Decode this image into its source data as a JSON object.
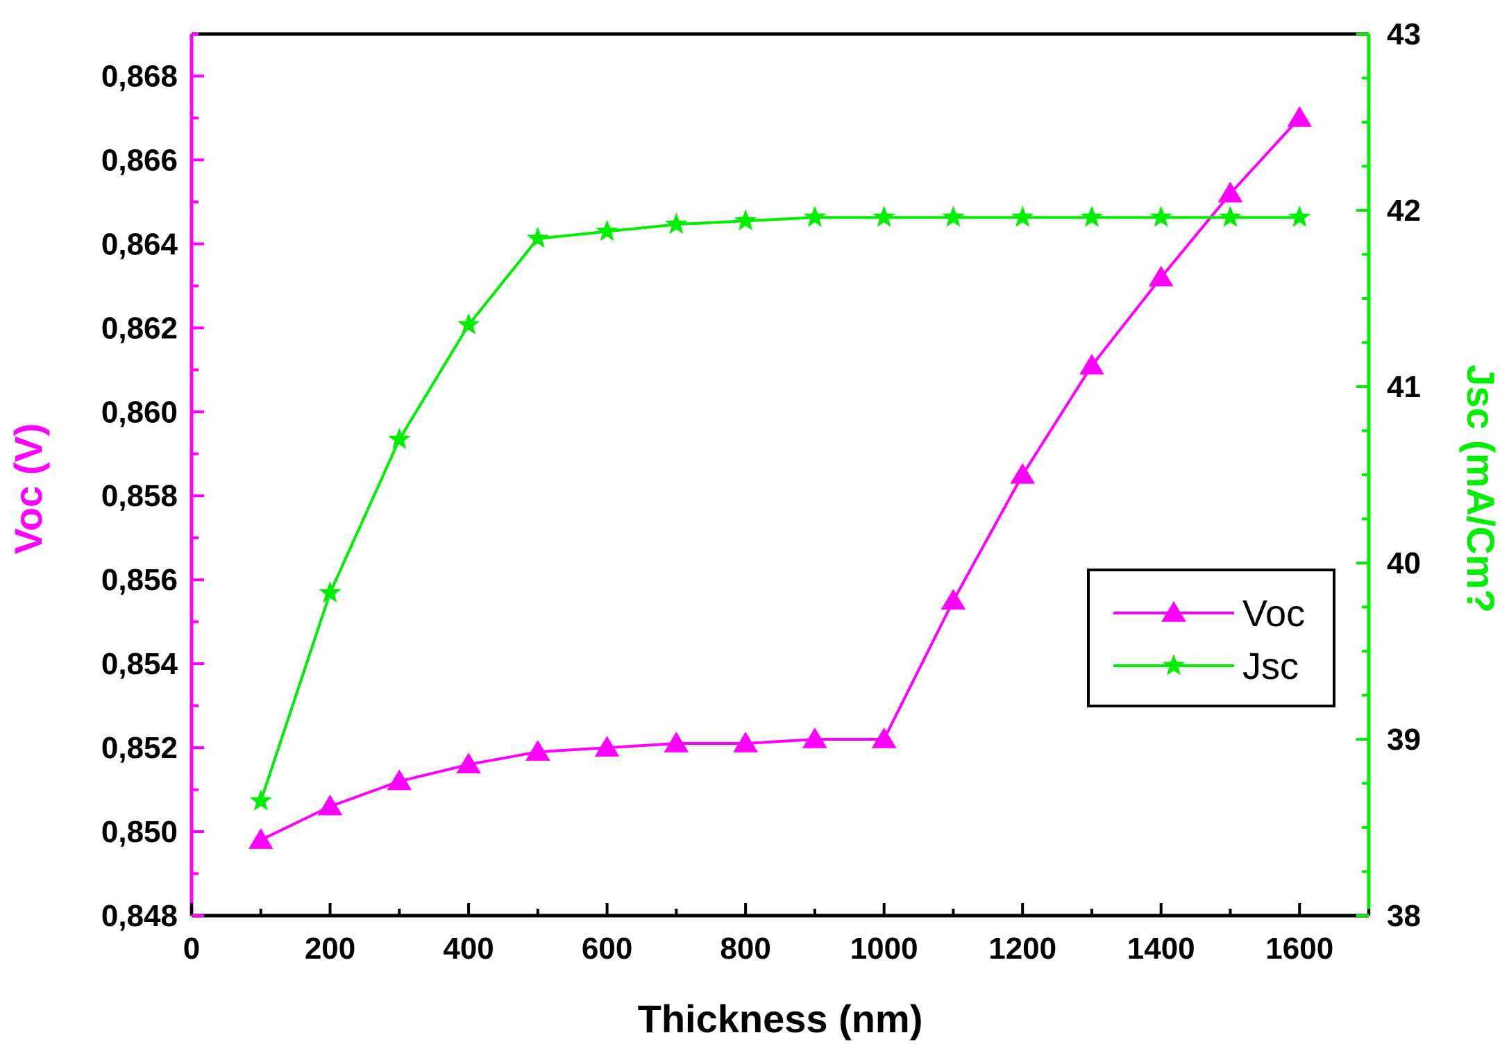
{
  "chart_data": {
    "type": "line",
    "xlabel": "Thickness (nm)",
    "ylabel_left": "Voc (V)",
    "ylabel_right": "Jsc (mA/Cm?",
    "xlim": [
      0,
      1700
    ],
    "ylim_left": [
      0.848,
      0.869
    ],
    "ylim_right": [
      38,
      43
    ],
    "x_ticks": [
      "0",
      "200",
      "400",
      "600",
      "800",
      "1000",
      "1200",
      "1400",
      "1600"
    ],
    "y_left_ticks": [
      "0,848",
      "0,850",
      "0,852",
      "0,854",
      "0,856",
      "0,858",
      "0,860",
      "0,862",
      "0,864",
      "0,866",
      "0,868"
    ],
    "y_right_ticks": [
      "38",
      "39",
      "40",
      "41",
      "42",
      "43"
    ],
    "x": [
      100,
      200,
      300,
      400,
      500,
      600,
      700,
      800,
      900,
      1000,
      1100,
      1200,
      1300,
      1400,
      1500,
      1600
    ],
    "series": [
      {
        "name": "Voc",
        "axis": "left",
        "color": "#ff00ff",
        "marker": "triangle",
        "values": [
          0.8498,
          0.8506,
          0.8512,
          0.8516,
          0.8519,
          0.852,
          0.8521,
          0.8521,
          0.8522,
          0.8522,
          0.8555,
          0.8585,
          0.8611,
          0.8632,
          0.8652,
          0.867
        ]
      },
      {
        "name": "Jsc",
        "axis": "right",
        "color": "#00ee00",
        "marker": "star",
        "values": [
          38.65,
          39.83,
          40.7,
          41.35,
          41.84,
          41.88,
          41.92,
          41.94,
          41.96,
          41.96,
          41.96,
          41.96,
          41.96,
          41.96,
          41.96,
          41.96
        ]
      }
    ],
    "legend": {
      "position": "center-right",
      "entries": [
        "Voc",
        "Jsc"
      ]
    },
    "colors": {
      "axis": "#000000",
      "left_axis": "#ff00ff",
      "right_axis": "#00ee00"
    }
  }
}
